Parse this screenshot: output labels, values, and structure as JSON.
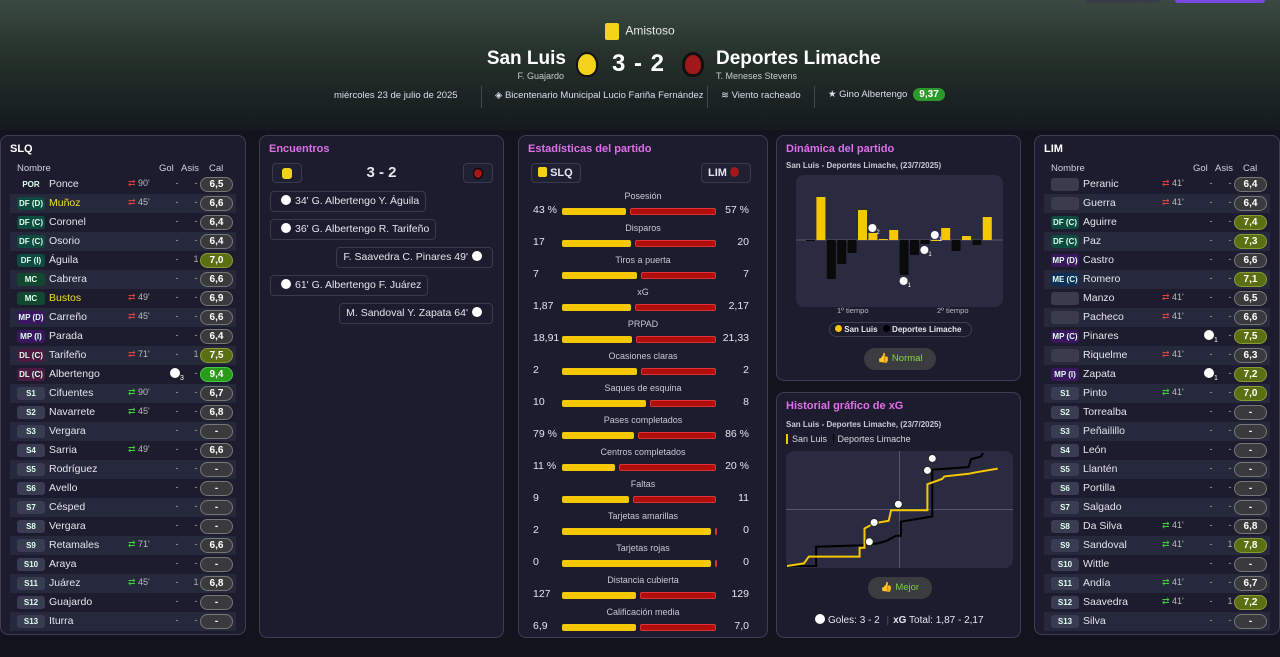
{
  "header": {
    "competition": "Amistoso",
    "home": {
      "name": "San Luis",
      "coach": "F. Guajardo"
    },
    "away": {
      "name": "Deportes Limache",
      "coach": "T. Meneses Stevens"
    },
    "score": "3 - 2",
    "date": "miércoles 23 de julio de 2025",
    "stadium": "Bicentenario Municipal Lucio Fariña Fernández",
    "weather": "Viento racheado",
    "potm": "Gino Albertengo",
    "potm_rating": "9,37"
  },
  "colors": {
    "home": "#f5c800",
    "away": "#b00d0d",
    "accent": "#e070e8",
    "rating_good": "#5a6e12",
    "rating_best": "#2a9a1a"
  },
  "columns": {
    "name": "Nombre",
    "goals": "Gol",
    "assists": "Asis",
    "rating": "Cal"
  },
  "home_squad": {
    "title": "SLQ",
    "players": [
      {
        "pos": "POR",
        "name": "Ponce",
        "sub": "out",
        "min": "90'",
        "g": "-",
        "a": "-",
        "cal": "6,5"
      },
      {
        "pos": "DF (D)",
        "name": "Muñoz",
        "hl": true,
        "sub": "out",
        "min": "45'",
        "g": "-",
        "a": "-",
        "cal": "6,6"
      },
      {
        "pos": "DF (C)",
        "name": "Coronel",
        "g": "-",
        "a": "-",
        "cal": "6,4"
      },
      {
        "pos": "DF (C)",
        "name": "Osorio",
        "g": "-",
        "a": "-",
        "cal": "6,4"
      },
      {
        "pos": "DF (I)",
        "name": "Águila",
        "g": "-",
        "a": "1",
        "cal": "7,0"
      },
      {
        "pos": "MC",
        "name": "Cabrera",
        "g": "-",
        "a": "-",
        "cal": "6,6"
      },
      {
        "pos": "MC",
        "name": "Bustos",
        "hl": true,
        "sub": "out",
        "min": "49'",
        "g": "-",
        "a": "-",
        "cal": "6,9"
      },
      {
        "pos": "MP (D)",
        "name": "Carreño",
        "sub": "out",
        "min": "45'",
        "g": "-",
        "a": "-",
        "cal": "6,6"
      },
      {
        "pos": "MP (I)",
        "name": "Parada",
        "g": "-",
        "a": "-",
        "cal": "6,4"
      },
      {
        "pos": "DL (C)",
        "name": "Tarifeño",
        "sub": "out",
        "min": "71'",
        "g": "-",
        "a": "1",
        "cal": "7,5"
      },
      {
        "pos": "DL (C)",
        "name": "Albertengo",
        "g": "3",
        "a": "-",
        "cal": "9,4"
      },
      {
        "pos": "S1",
        "name": "Cifuentes",
        "sub": "in",
        "min": "90'",
        "g": "-",
        "a": "-",
        "cal": "6,7"
      },
      {
        "pos": "S2",
        "name": "Navarrete",
        "sub": "in",
        "min": "45'",
        "g": "-",
        "a": "-",
        "cal": "6,8"
      },
      {
        "pos": "S3",
        "name": "Vergara",
        "g": "-",
        "a": "-",
        "cal": "-"
      },
      {
        "pos": "S4",
        "name": "Sarria",
        "sub": "in",
        "min": "49'",
        "g": "-",
        "a": "-",
        "cal": "6,6"
      },
      {
        "pos": "S5",
        "name": "Rodríguez",
        "g": "-",
        "a": "-",
        "cal": "-"
      },
      {
        "pos": "S6",
        "name": "Avello",
        "g": "-",
        "a": "-",
        "cal": "-"
      },
      {
        "pos": "S7",
        "name": "Césped",
        "g": "-",
        "a": "-",
        "cal": "-"
      },
      {
        "pos": "S8",
        "name": "Vergara",
        "g": "-",
        "a": "-",
        "cal": "-"
      },
      {
        "pos": "S9",
        "name": "Retamales",
        "sub": "in",
        "min": "71'",
        "g": "-",
        "a": "-",
        "cal": "6,6"
      },
      {
        "pos": "S10",
        "name": "Araya",
        "g": "-",
        "a": "-",
        "cal": "-"
      },
      {
        "pos": "S11",
        "name": "Juárez",
        "sub": "in",
        "min": "45'",
        "g": "-",
        "a": "1",
        "cal": "6,8"
      },
      {
        "pos": "S12",
        "name": "Guajardo",
        "g": "-",
        "a": "-",
        "cal": "-"
      },
      {
        "pos": "S13",
        "name": "Iturra",
        "g": "-",
        "a": "-",
        "cal": "-"
      }
    ]
  },
  "away_squad": {
    "title": "LIM",
    "players": [
      {
        "pos": "",
        "name": "Peranic",
        "sub": "out",
        "min": "41'",
        "g": "-",
        "a": "-",
        "cal": "6,4"
      },
      {
        "pos": "",
        "name": "Guerra",
        "sub": "out",
        "min": "41'",
        "g": "-",
        "a": "-",
        "cal": "6,4"
      },
      {
        "pos": "DF (C)",
        "name": "Aguirre",
        "g": "-",
        "a": "-",
        "cal": "7,4"
      },
      {
        "pos": "DF (C)",
        "name": "Paz",
        "g": "-",
        "a": "-",
        "cal": "7,3"
      },
      {
        "pos": "MP (D)",
        "name": "Castro",
        "g": "-",
        "a": "-",
        "cal": "6,6"
      },
      {
        "pos": "ME (C)",
        "name": "Romero",
        "g": "-",
        "a": "-",
        "cal": "7,1"
      },
      {
        "pos": "",
        "name": "Manzo",
        "sub": "out",
        "min": "41'",
        "g": "-",
        "a": "-",
        "cal": "6,5"
      },
      {
        "pos": "",
        "name": "Pacheco",
        "sub": "out",
        "min": "41'",
        "g": "-",
        "a": "-",
        "cal": "6,6"
      },
      {
        "pos": "MP (C)",
        "name": "Pinares",
        "g": "1",
        "a": "-",
        "cal": "7,5"
      },
      {
        "pos": "",
        "name": "Riquelme",
        "sub": "out",
        "min": "41'",
        "g": "-",
        "a": "-",
        "cal": "6,3"
      },
      {
        "pos": "MP (I)",
        "name": "Zapata",
        "g": "1",
        "a": "-",
        "cal": "7,2"
      },
      {
        "pos": "S1",
        "name": "Pinto",
        "sub": "in",
        "min": "41'",
        "g": "-",
        "a": "-",
        "cal": "7,0"
      },
      {
        "pos": "S2",
        "name": "Torrealba",
        "g": "-",
        "a": "-",
        "cal": "-"
      },
      {
        "pos": "S3",
        "name": "Peñailillo",
        "g": "-",
        "a": "-",
        "cal": "-"
      },
      {
        "pos": "S4",
        "name": "León",
        "g": "-",
        "a": "-",
        "cal": "-"
      },
      {
        "pos": "S5",
        "name": "Llantén",
        "g": "-",
        "a": "-",
        "cal": "-"
      },
      {
        "pos": "S6",
        "name": "Portilla",
        "g": "-",
        "a": "-",
        "cal": "-"
      },
      {
        "pos": "S7",
        "name": "Salgado",
        "g": "-",
        "a": "-",
        "cal": "-"
      },
      {
        "pos": "S8",
        "name": "Da Silva",
        "sub": "in",
        "min": "41'",
        "g": "-",
        "a": "-",
        "cal": "6,8"
      },
      {
        "pos": "S9",
        "name": "Sandoval",
        "sub": "in",
        "min": "41'",
        "g": "-",
        "a": "1",
        "cal": "7,8"
      },
      {
        "pos": "S10",
        "name": "Wittle",
        "g": "-",
        "a": "-",
        "cal": "-"
      },
      {
        "pos": "S11",
        "name": "Andía",
        "sub": "in",
        "min": "41'",
        "g": "-",
        "a": "-",
        "cal": "6,7"
      },
      {
        "pos": "S12",
        "name": "Saavedra",
        "sub": "in",
        "min": "41'",
        "g": "-",
        "a": "1",
        "cal": "7,2"
      },
      {
        "pos": "S13",
        "name": "Silva",
        "g": "-",
        "a": "-",
        "cal": "-"
      }
    ]
  },
  "encuentros": {
    "title": "Encuentros",
    "score": "3 - 2",
    "events": [
      {
        "side": "home",
        "text": "34'  G. Albertengo  Y. Águila"
      },
      {
        "side": "home",
        "text": "36'  G. Albertengo  R. Tarifeño"
      },
      {
        "side": "away",
        "text": "F. Saavedra  C. Pinares  49'"
      },
      {
        "side": "home",
        "text": "61'  G. Albertengo  F. Juárez"
      },
      {
        "side": "away",
        "text": "M. Sandoval  Y. Zapata  64'"
      }
    ]
  },
  "stats": {
    "title": "Estadísticas del partido",
    "home": "SLQ",
    "away": "LIM",
    "rows": [
      {
        "label": "Posesión",
        "h": "43 %",
        "a": "57 %",
        "hv": 43,
        "av": 57
      },
      {
        "label": "Disparos",
        "h": "17",
        "a": "20",
        "hv": 17,
        "av": 20
      },
      {
        "label": "Tiros a puerta",
        "h": "7",
        "a": "7",
        "hv": 7,
        "av": 7
      },
      {
        "label": "xG",
        "h": "1,87",
        "a": "2,17",
        "hv": 1.87,
        "av": 2.17
      },
      {
        "label": "PRPAD",
        "h": "18,91",
        "a": "21,33",
        "hv": 18.91,
        "av": 21.33
      },
      {
        "label": "Ocasiones claras",
        "h": "2",
        "a": "2",
        "hv": 2,
        "av": 2
      },
      {
        "label": "Saques de esquina",
        "h": "10",
        "a": "8",
        "hv": 10,
        "av": 8
      },
      {
        "label": "Pases completados",
        "h": "79 %",
        "a": "86 %",
        "hv": 79,
        "av": 86
      },
      {
        "label": "Centros completados",
        "h": "11 %",
        "a": "20 %",
        "hv": 11,
        "av": 20
      },
      {
        "label": "Faltas",
        "h": "9",
        "a": "11",
        "hv": 9,
        "av": 11
      },
      {
        "label": "Tarjetas amarillas",
        "h": "2",
        "a": "0",
        "hv": 2,
        "av": 0
      },
      {
        "label": "Tarjetas rojas",
        "h": "0",
        "a": "0",
        "hv": 0,
        "av": 0
      },
      {
        "label": "Distancia cubierta",
        "h": "127",
        "a": "129",
        "hv": 127,
        "av": 129
      },
      {
        "label": "Calificación media",
        "h": "6,9",
        "a": "7,0",
        "hv": 6.9,
        "av": 7.0
      }
    ]
  },
  "momentum": {
    "title": "Dinámica del partido",
    "subtitle": "San Luis - Deportes Limache, (23/7/2025)",
    "half1": "1º tiempo",
    "half2": "2º tiempo",
    "legend": [
      "San Luis",
      "Deportes Limache"
    ],
    "verdict": "Normal",
    "chart_data": {
      "type": "bar",
      "values": [
        -1,
        43,
        -39,
        -24,
        -13,
        30,
        7,
        1,
        10,
        -35,
        -15,
        -4,
        0,
        12,
        -11,
        4,
        -5,
        23
      ],
      "goals": [
        {
          "bar": 6,
          "side": "home",
          "count": "2"
        },
        {
          "bar": 9,
          "side": "away",
          "count": "1"
        },
        {
          "bar": 11,
          "side": "home",
          "count": "1"
        },
        {
          "bar": 12,
          "side": "away",
          "count": "1"
        }
      ]
    }
  },
  "xg": {
    "title": "Historial gráfico de xG",
    "subtitle": "San Luis - Deportes Limache, (23/7/2025)",
    "legend": [
      "San Luis",
      "Deportes Limache"
    ],
    "verdict": "Mejor",
    "goals_label": "Goles:",
    "goals": "3 - 2",
    "xg_label": "xG",
    "total_label": "Total:",
    "xg_home": "1,87",
    "xg_away": "2,17",
    "chart_data": {
      "type": "line",
      "xlim": [
        0,
        90
      ],
      "ylim": [
        0,
        2.17
      ],
      "series": [
        {
          "name": "San Luis",
          "points": [
            [
              0,
              0
            ],
            [
              7,
              0.05
            ],
            [
              9,
              0.18
            ],
            [
              30,
              0.18
            ],
            [
              30,
              0.35
            ],
            [
              32,
              0.35
            ],
            [
              32,
              0.72
            ],
            [
              36,
              0.82
            ],
            [
              42,
              0.87
            ],
            [
              43,
              1.07
            ],
            [
              58,
              1.07
            ],
            [
              58,
              1.57
            ],
            [
              64,
              1.67
            ],
            [
              65,
              1.72
            ],
            [
              75,
              1.77
            ],
            [
              78,
              1.8
            ],
            [
              87,
              1.87
            ]
          ]
        },
        {
          "name": "Deportes Limache",
          "points": [
            [
              0,
              0
            ],
            [
              12,
              0
            ],
            [
              12,
              0.37
            ],
            [
              32,
              0.4
            ],
            [
              38,
              0.44
            ],
            [
              41,
              0.48
            ],
            [
              45,
              0.58
            ],
            [
              47,
              0.58
            ],
            [
              47,
              0.85
            ],
            [
              60,
              0.95
            ],
            [
              60,
              1.85
            ],
            [
              75,
              1.9
            ],
            [
              76,
              2.05
            ],
            [
              80,
              2.1
            ],
            [
              81,
              2.17
            ]
          ]
        }
      ],
      "goals": [
        [
          34,
          0.35
        ],
        [
          36,
          0.72
        ],
        [
          46,
          1.07
        ],
        [
          58,
          1.72
        ],
        [
          60,
          1.95
        ]
      ]
    }
  }
}
